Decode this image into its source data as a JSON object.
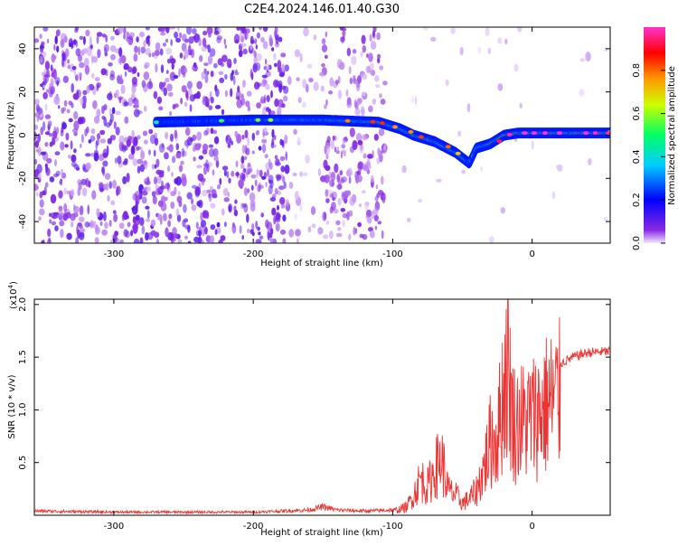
{
  "title": "C2E4.2024.146.01.40.G30",
  "chart_data": [
    {
      "type": "heatmap",
      "xlabel": "Height of straight line (km)",
      "ylabel": "Frequency (Hz)",
      "xlim": [
        -357,
        56
      ],
      "ylim": [
        -50,
        50
      ],
      "xticks": [
        -300,
        -200,
        -100,
        0
      ],
      "yticks": [
        -40,
        -20,
        0,
        20,
        40
      ],
      "colorbar": {
        "label": "Normalized spectral amplitude",
        "range": [
          0,
          1
        ],
        "ticks": [
          "0.0",
          "0.2",
          "0.4",
          "0.6",
          "0.8"
        ],
        "tick_values": [
          0.0,
          0.2,
          0.4,
          0.6,
          0.8
        ]
      },
      "signal_track": [
        {
          "x": -270,
          "y": 6,
          "amp": 0.35
        },
        {
          "x": -200,
          "y": 7,
          "amp": 0.45
        },
        {
          "x": -150,
          "y": 7,
          "amp": 0.6
        },
        {
          "x": -110,
          "y": 6,
          "amp": 0.75
        },
        {
          "x": -95,
          "y": 3,
          "amp": 0.6
        },
        {
          "x": -85,
          "y": 0,
          "amp": 0.7
        },
        {
          "x": -70,
          "y": -3,
          "amp": 0.75
        },
        {
          "x": -55,
          "y": -8,
          "amp": 0.6
        },
        {
          "x": -45,
          "y": -13,
          "amp": 0.5
        },
        {
          "x": -40,
          "y": -6,
          "amp": 0.55
        },
        {
          "x": -30,
          "y": -4,
          "amp": 0.8
        },
        {
          "x": -20,
          "y": 0,
          "amp": 0.85
        },
        {
          "x": -10,
          "y": 1,
          "amp": 0.9
        },
        {
          "x": 0,
          "y": 1,
          "amp": 0.95
        },
        {
          "x": 20,
          "y": 1,
          "amp": 0.9
        },
        {
          "x": 56,
          "y": 1,
          "amp": 0.85
        }
      ]
    },
    {
      "type": "line",
      "xlabel": "Height of straight line (km)",
      "ylabel": "SNR (10 * v/v)",
      "multiplier": "(x10",
      "multiplier_exp": "4",
      "multiplier_close": ")",
      "xlim": [
        -357,
        56
      ],
      "ylim": [
        0,
        2.05
      ],
      "xticks": [
        -300,
        -200,
        -100,
        0
      ],
      "yticks": [
        "0.5",
        "1.0",
        "1.5",
        "2.0"
      ],
      "ytick_values": [
        0.5,
        1.0,
        1.5,
        2.0
      ],
      "color": "#ee3333",
      "series": [
        {
          "x": [
            -357,
            -300,
            -250,
            -200,
            -160,
            -150,
            -140,
            -120,
            -100,
            -90,
            -85,
            -80,
            -75,
            -70,
            -65,
            -60,
            -55,
            -50,
            -45,
            -40,
            -35,
            -30,
            -25,
            -20,
            -17,
            -15,
            -12,
            -10,
            -5,
            0,
            5,
            10,
            20,
            30,
            40,
            56
          ],
          "y": [
            0.04,
            0.03,
            0.03,
            0.03,
            0.05,
            0.08,
            0.05,
            0.04,
            0.05,
            0.1,
            0.25,
            0.45,
            0.35,
            0.55,
            0.7,
            0.3,
            0.25,
            0.15,
            0.2,
            0.3,
            0.55,
            0.9,
            0.95,
            1.6,
            2.05,
            1.3,
            1.1,
            1.15,
            1.15,
            1.2,
            1.25,
            1.35,
            1.45,
            1.52,
            1.56,
            1.57
          ]
        }
      ]
    }
  ]
}
